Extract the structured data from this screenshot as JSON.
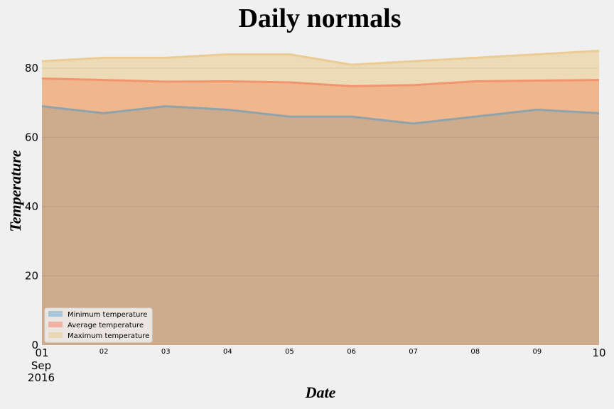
{
  "chart_data": {
    "type": "area",
    "title": "Daily normals",
    "xlabel": "Date",
    "ylabel": "Temperature",
    "x": [
      "2016-09-01",
      "2016-09-02",
      "2016-09-03",
      "2016-09-04",
      "2016-09-05",
      "2016-09-06",
      "2016-09-07",
      "2016-09-08",
      "2016-09-09",
      "2016-09-10"
    ],
    "x_tick_labels": [
      "01",
      "02",
      "03",
      "04",
      "05",
      "06",
      "07",
      "08",
      "09",
      "10"
    ],
    "x_first_tick_extra": [
      "Sep",
      "2016"
    ],
    "ylim": [
      0,
      88
    ],
    "yticks": [
      0,
      20,
      40,
      60,
      80
    ],
    "stacked": false,
    "grid": true,
    "legend_position": "lower-left",
    "series": [
      {
        "name": "Minimum temperature",
        "color": "#b4a79a",
        "line_color": "#8fa3ab",
        "legend_color": "#a7c6d8",
        "values": [
          69,
          67,
          69,
          68,
          66,
          66,
          64,
          66,
          68,
          67
        ]
      },
      {
        "name": "Average temperature",
        "color": "#f0b78e",
        "line_color": "#f2956e",
        "legend_color": "#f2b0a0",
        "values": [
          77.0,
          76.6,
          76.1,
          76.2,
          75.9,
          74.8,
          75.1,
          76.2,
          76.4,
          76.6
        ]
      },
      {
        "name": "Maximum temperature",
        "color": "#ecdbb6",
        "line_color": "#ebcc95",
        "legend_color": "#ebd8b4",
        "values": [
          82,
          83,
          83,
          84,
          84,
          81,
          82,
          83,
          84,
          85
        ]
      }
    ],
    "colors": {
      "background": "#f0f0f0",
      "grid": "#cbcbcb",
      "min_fill": "#cdab8c"
    }
  }
}
